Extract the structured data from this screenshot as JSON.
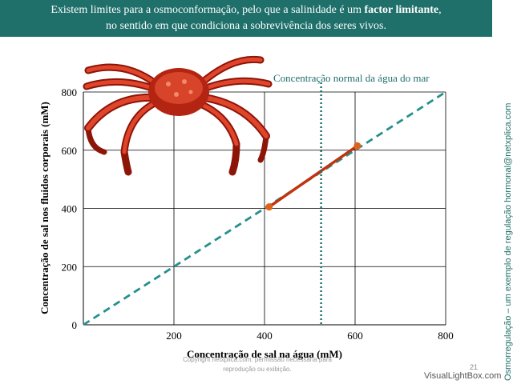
{
  "header": {
    "line1_pre": "Existem limites para a osmoconformação, pelo que a salinidade é um ",
    "line1_bold": "factor limitante",
    "line1_post": ",",
    "line2": "no sentido em que condiciona a sobrevivência dos seres vivos."
  },
  "sidebar": {
    "text": "Osmorregulação – um exemplo de regulação hormonal@netxplica.com"
  },
  "footer": {
    "copyright": "Copyright netxplica.com: permissão necessária para reprodução ou exibição.",
    "page_number": "21",
    "watermark": "VisualLightBox.com"
  },
  "colors": {
    "header_bg": "#1f6f6a",
    "conformer_line": "#25908c",
    "body_fluid_line": "#c0330f",
    "seawater_line": "#1f6f6a"
  },
  "icons": [
    "crab-image"
  ],
  "chart_data": {
    "type": "line",
    "title": "",
    "xlabel": "Concentração de sal na água (mM)",
    "ylabel": "Concentração de sal nos fluidos corporais (mM)",
    "xlim": [
      0,
      800
    ],
    "ylim": [
      0,
      800
    ],
    "x_ticks": [
      0,
      200,
      400,
      600,
      800
    ],
    "y_ticks": [
      0,
      200,
      400,
      600,
      800
    ],
    "x_tick_labels": [
      "",
      "200",
      "400",
      "600",
      "800"
    ],
    "y_tick_labels": [
      "0",
      "200",
      "400",
      "600",
      "800"
    ],
    "grid": true,
    "series": [
      {
        "style": "dashed",
        "points": [
          [
            0,
            0
          ],
          [
            800,
            800
          ]
        ]
      },
      {
        "style": "solid",
        "points": [
          [
            410,
            405
          ],
          [
            605,
            615
          ]
        ]
      }
    ],
    "vertical_marker": {
      "x": 525,
      "label": "Concentração normal da água do mar",
      "style": "dotted"
    }
  }
}
